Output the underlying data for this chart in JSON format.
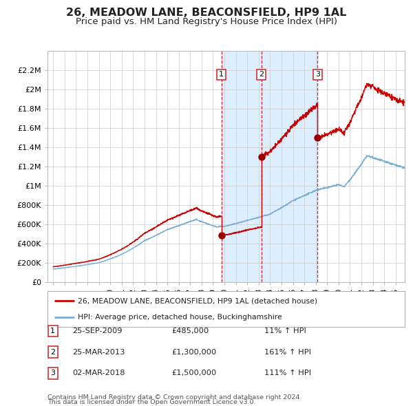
{
  "title": "26, MEADOW LANE, BEACONSFIELD, HP9 1AL",
  "subtitle": "Price paid vs. HM Land Registry's House Price Index (HPI)",
  "title_fontsize": 11.5,
  "subtitle_fontsize": 9.5,
  "legend_line1": "26, MEADOW LANE, BEACONSFIELD, HP9 1AL (detached house)",
  "legend_line2": "HPI: Average price, detached house, Buckinghamshire",
  "transaction1_date": "25-SEP-2009",
  "transaction1_price": "£485,000",
  "transaction1_hpi": "11% ↑ HPI",
  "transaction1_year": 2009.73,
  "transaction2_date": "25-MAR-2013",
  "transaction2_price": "£1,300,000",
  "transaction2_hpi": "161% ↑ HPI",
  "transaction2_year": 2013.23,
  "transaction3_date": "02-MAR-2018",
  "transaction3_price": "£1,500,000",
  "transaction3_hpi": "111% ↑ HPI",
  "transaction3_year": 2018.17,
  "purchase1_value": 485000,
  "purchase2_value": 1300000,
  "purchase3_value": 1500000,
  "red_line_color": "#cc0000",
  "blue_line_color": "#7aadd4",
  "background_color": "#ffffff",
  "plot_bg_color": "#ffffff",
  "shade_color": "#ddeeff",
  "grid_color": "#cccccc",
  "dashed_color": "#cc0000",
  "marker_color": "#990000",
  "box_edge_color": "#cc3333",
  "ylim_max": 2400000,
  "yticks": [
    0,
    200000,
    400000,
    600000,
    800000,
    1000000,
    1200000,
    1400000,
    1600000,
    1800000,
    2000000,
    2200000
  ],
  "ytick_labels": [
    "£0",
    "£200K",
    "£400K",
    "£600K",
    "£800K",
    "£1M",
    "£1.2M",
    "£1.4M",
    "£1.6M",
    "£1.8M",
    "£2M",
    "£2.2M"
  ],
  "xmin": 1994.5,
  "xmax": 2025.8,
  "xtick_years": [
    1995,
    1996,
    1997,
    1998,
    1999,
    2000,
    2001,
    2002,
    2003,
    2004,
    2005,
    2006,
    2007,
    2008,
    2009,
    2010,
    2011,
    2012,
    2013,
    2014,
    2015,
    2016,
    2017,
    2018,
    2019,
    2020,
    2021,
    2022,
    2023,
    2024,
    2025
  ],
  "footnote_line1": "Contains HM Land Registry data © Crown copyright and database right 2024.",
  "footnote_line2": "This data is licensed under the Open Government Licence v3.0."
}
